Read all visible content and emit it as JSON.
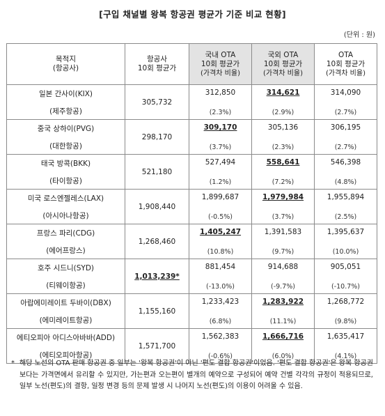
{
  "title": "[구입 채널별 왕복 항공권 평균가 기준 비교 현황]",
  "unit": "(단위 : 원)",
  "headers": {
    "destination": [
      "목적지",
      "(항공사)"
    ],
    "airline": [
      "항공사",
      "10회 평균가"
    ],
    "domestic_ota": [
      "국내 OTA",
      "10회 평균가",
      "(가격차 비율)"
    ],
    "foreign_ota": [
      "국외 OTA",
      "10회 평균가",
      "(가격차 비율)"
    ],
    "ota": [
      "OTA",
      "10회 평균가",
      "(가격차 비율)"
    ]
  },
  "rows": [
    {
      "destination": "일본 간사이(KIX)",
      "airline": "(제주항공)",
      "airline_price": "305,732",
      "domestic": "312,850",
      "domestic_pct": "(2.3%)",
      "foreign": "314,621",
      "foreign_pct": "(2.9%)",
      "ota": "314,090",
      "ota_pct": "(2.7%)",
      "lowest": "foreign"
    },
    {
      "destination": "중국 상하이(PVG)",
      "airline": "(대한항공)",
      "airline_price": "298,170",
      "domestic": "309,170",
      "domestic_pct": "(3.7%)",
      "foreign": "305,136",
      "foreign_pct": "(2.3%)",
      "ota": "306,195",
      "ota_pct": "(2.7%)",
      "lowest": "domestic"
    },
    {
      "destination": "태국 방콕(BKK)",
      "airline": "(타이항공)",
      "airline_price": "521,180",
      "domestic": "527,494",
      "domestic_pct": "(1.2%)",
      "foreign": "558,641",
      "foreign_pct": "(7.2%)",
      "ota": "546,398",
      "ota_pct": "(4.8%)",
      "lowest": "foreign"
    },
    {
      "destination": "미국 로스엔젤레스(LAX)",
      "airline": "(아시아나항공)",
      "airline_price": "1,908,440",
      "domestic": "1,899,687",
      "domestic_pct": "(-0.5%)",
      "foreign": "1,979,984",
      "foreign_pct": "(3.7%)",
      "ota": "1,955,894",
      "ota_pct": "(2.5%)",
      "lowest": "foreign"
    },
    {
      "destination": "프랑스 파리(CDG)",
      "airline": "(에어프랑스)",
      "airline_price": "1,268,460",
      "domestic": "1,405,247",
      "domestic_pct": "(10.8%)",
      "foreign": "1,391,583",
      "foreign_pct": "(9.7%)",
      "ota": "1,395,637",
      "ota_pct": "(10.0%)",
      "lowest": "domestic"
    },
    {
      "destination": "호주 시드니(SYD)",
      "airline": "(티웨이항공)",
      "airline_price": "1,013,239*",
      "domestic": "881,454",
      "domestic_pct": "(-13.0%)",
      "foreign": "914,688",
      "foreign_pct": "(-9.7%)",
      "ota": "905,051",
      "ota_pct": "(-10.7%)",
      "lowest": "airline"
    },
    {
      "destination": "아랍에미레이트 두바이(DBX)",
      "airline": "(에미레이트항공)",
      "airline_price": "1,155,160",
      "domestic": "1,233,423",
      "domestic_pct": "(6.8%)",
      "foreign": "1,283,922",
      "foreign_pct": "(11.1%)",
      "ota": "1,268,772",
      "ota_pct": "(9.8%)",
      "lowest": "foreign"
    },
    {
      "destination": "에티오피아 아디스아바바(ADD)",
      "airline": "(에티오피아항공)",
      "airline_price": "1,571,700",
      "domestic": "1,562,383",
      "domestic_pct": "(-0.6%)",
      "foreign": "1,666,716",
      "foreign_pct": "(6.0%)",
      "ota": "1,635,417",
      "ota_pct": "(4.1%)",
      "lowest": "foreign"
    }
  ],
  "note": {
    "mark": "*",
    "text": "해당 노선의 OTA 판매 항공권 중 일부는 '왕복 항공권'이 아닌 '편도 결합 항공권'이었음. '편도 결합 항공권'은 왕복 항공권보다는 가격면에서 유리할 수 있지만, 가는편과 오는편이 별개의 예약으로 구성되어 예약 건별 각각의 규정이 적용되므로, 일부 노선(편도)의 결항, 일정 변경 등의 문제 발생 시 나머지 노선(편도)의 이용이 어려울 수 있음."
  }
}
